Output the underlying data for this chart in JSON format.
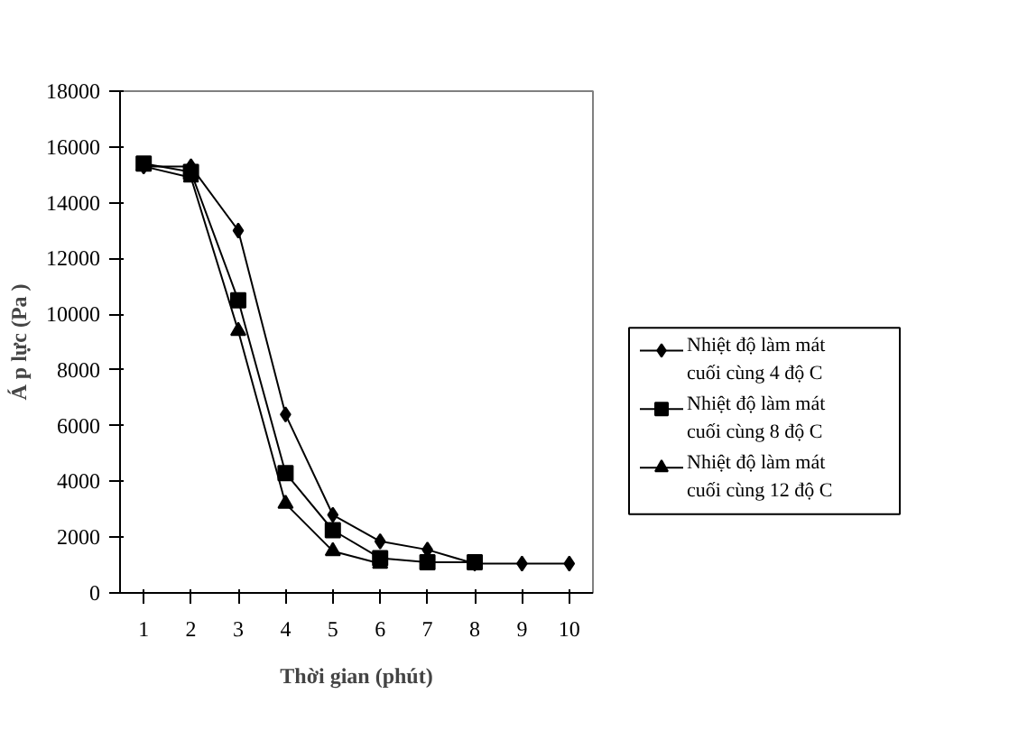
{
  "chart_data": {
    "type": "line",
    "xlabel": "Thời gian (phút)",
    "ylabel": "Á p lực (Pa )",
    "categories": [
      "1",
      "2",
      "3",
      "4",
      "5",
      "6",
      "7",
      "8",
      "9",
      "10"
    ],
    "ylim": [
      0,
      18000
    ],
    "yticks": [
      0,
      2000,
      4000,
      6000,
      8000,
      10000,
      12000,
      14000,
      16000,
      18000
    ],
    "legend": "right",
    "series": [
      {
        "name": "Nhiệt độ làm mát cuối cùng 4 độ C",
        "color": "#000000",
        "marker": "diamond",
        "values": [
          15300,
          15300,
          13000,
          6400,
          2800,
          1850,
          1550,
          1050,
          1050,
          1050
        ]
      },
      {
        "name": "Nhiệt độ làm mát cuối cùng 8 độ C",
        "color": "#000000",
        "marker": "square",
        "values": [
          15400,
          15100,
          10500,
          4300,
          2250,
          1250,
          1100,
          1100,
          null,
          null
        ]
      },
      {
        "name": "Nhiệt độ làm mát cuối cùng 12 độ C",
        "color": "#000000",
        "marker": "triangle",
        "values": [
          15300,
          14900,
          9400,
          3200,
          1500,
          1050,
          null,
          null,
          null,
          null
        ]
      }
    ]
  }
}
